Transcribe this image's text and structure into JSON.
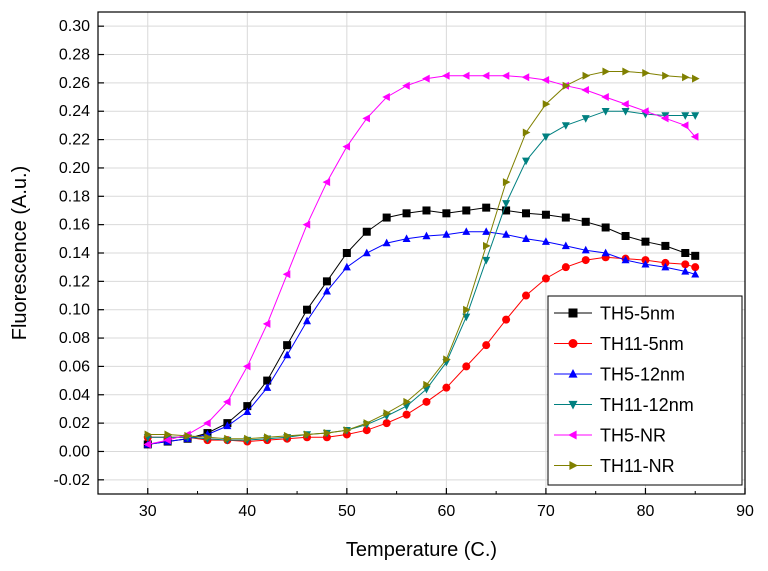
{
  "chart_data": {
    "type": "scatter",
    "title": "",
    "xlabel": "Temperature (C.)",
    "ylabel": "Fluorescence (A.u.)",
    "xlim": [
      25,
      90
    ],
    "ylim": [
      -0.03,
      0.31
    ],
    "xticks": [
      30,
      40,
      50,
      60,
      70,
      80,
      90
    ],
    "yticks": [
      -0.02,
      0.0,
      0.02,
      0.04,
      0.06,
      0.08,
      0.1,
      0.12,
      0.14,
      0.16,
      0.18,
      0.2,
      0.22,
      0.24,
      0.26,
      0.28,
      0.3
    ],
    "grid": true,
    "legend_position": "bottom-right",
    "series": [
      {
        "name": "TH5-5nm",
        "color": "#000000",
        "marker": "square",
        "x": [
          30,
          32,
          34,
          36,
          38,
          40,
          42,
          44,
          46,
          48,
          50,
          52,
          54,
          56,
          58,
          60,
          62,
          64,
          66,
          68,
          70,
          72,
          74,
          76,
          78,
          80,
          82,
          84,
          85
        ],
        "y": [
          0.005,
          0.007,
          0.009,
          0.013,
          0.02,
          0.032,
          0.05,
          0.075,
          0.1,
          0.12,
          0.14,
          0.155,
          0.165,
          0.168,
          0.17,
          0.168,
          0.17,
          0.172,
          0.17,
          0.168,
          0.167,
          0.165,
          0.162,
          0.158,
          0.152,
          0.148,
          0.145,
          0.14,
          0.138
        ]
      },
      {
        "name": "TH11-5nm",
        "color": "#ff0000",
        "marker": "circle",
        "x": [
          30,
          32,
          34,
          36,
          38,
          40,
          42,
          44,
          46,
          48,
          50,
          52,
          54,
          56,
          58,
          60,
          62,
          64,
          66,
          68,
          70,
          72,
          74,
          76,
          78,
          80,
          82,
          84,
          85
        ],
        "y": [
          0.01,
          0.01,
          0.01,
          0.008,
          0.008,
          0.007,
          0.008,
          0.009,
          0.01,
          0.01,
          0.012,
          0.015,
          0.02,
          0.026,
          0.035,
          0.045,
          0.06,
          0.075,
          0.093,
          0.11,
          0.122,
          0.13,
          0.135,
          0.137,
          0.136,
          0.135,
          0.133,
          0.132,
          0.13
        ]
      },
      {
        "name": "TH5-12nm",
        "color": "#0000ff",
        "marker": "triangle-up",
        "x": [
          30,
          32,
          34,
          36,
          38,
          40,
          42,
          44,
          46,
          48,
          50,
          52,
          54,
          56,
          58,
          60,
          62,
          64,
          66,
          68,
          70,
          72,
          74,
          76,
          78,
          80,
          82,
          84,
          85
        ],
        "y": [
          0.005,
          0.007,
          0.009,
          0.012,
          0.018,
          0.028,
          0.045,
          0.068,
          0.092,
          0.113,
          0.13,
          0.14,
          0.147,
          0.15,
          0.152,
          0.153,
          0.155,
          0.155,
          0.153,
          0.15,
          0.148,
          0.145,
          0.142,
          0.14,
          0.135,
          0.132,
          0.13,
          0.127,
          0.125
        ]
      },
      {
        "name": "TH11-12nm",
        "color": "#008080",
        "marker": "triangle-down",
        "x": [
          30,
          32,
          34,
          36,
          38,
          40,
          42,
          44,
          46,
          48,
          50,
          52,
          54,
          56,
          58,
          60,
          62,
          64,
          66,
          68,
          70,
          72,
          74,
          76,
          78,
          80,
          82,
          84,
          85
        ],
        "y": [
          0.01,
          0.01,
          0.01,
          0.009,
          0.008,
          0.008,
          0.009,
          0.01,
          0.012,
          0.013,
          0.015,
          0.019,
          0.025,
          0.032,
          0.044,
          0.063,
          0.095,
          0.135,
          0.175,
          0.205,
          0.222,
          0.23,
          0.235,
          0.24,
          0.24,
          0.238,
          0.237,
          0.237,
          0.237
        ]
      },
      {
        "name": "TH5-NR",
        "color": "#ff00ff",
        "marker": "triangle-left",
        "x": [
          30,
          32,
          34,
          36,
          38,
          40,
          42,
          44,
          46,
          48,
          50,
          52,
          54,
          56,
          58,
          60,
          62,
          64,
          66,
          68,
          70,
          72,
          74,
          76,
          78,
          80,
          82,
          84,
          85
        ],
        "y": [
          0.005,
          0.008,
          0.012,
          0.02,
          0.035,
          0.06,
          0.09,
          0.125,
          0.16,
          0.19,
          0.215,
          0.235,
          0.25,
          0.258,
          0.263,
          0.265,
          0.265,
          0.265,
          0.265,
          0.264,
          0.262,
          0.258,
          0.255,
          0.25,
          0.245,
          0.24,
          0.235,
          0.23,
          0.222
        ]
      },
      {
        "name": "TH11-NR",
        "color": "#808000",
        "marker": "triangle-right",
        "x": [
          30,
          32,
          34,
          36,
          38,
          40,
          42,
          44,
          46,
          48,
          50,
          52,
          54,
          56,
          58,
          60,
          62,
          64,
          66,
          68,
          70,
          72,
          74,
          76,
          78,
          80,
          82,
          84,
          85
        ],
        "y": [
          0.012,
          0.012,
          0.011,
          0.01,
          0.009,
          0.009,
          0.01,
          0.011,
          0.012,
          0.013,
          0.015,
          0.02,
          0.027,
          0.035,
          0.047,
          0.065,
          0.1,
          0.145,
          0.19,
          0.225,
          0.245,
          0.258,
          0.265,
          0.268,
          0.268,
          0.267,
          0.265,
          0.264,
          0.263
        ]
      }
    ]
  }
}
